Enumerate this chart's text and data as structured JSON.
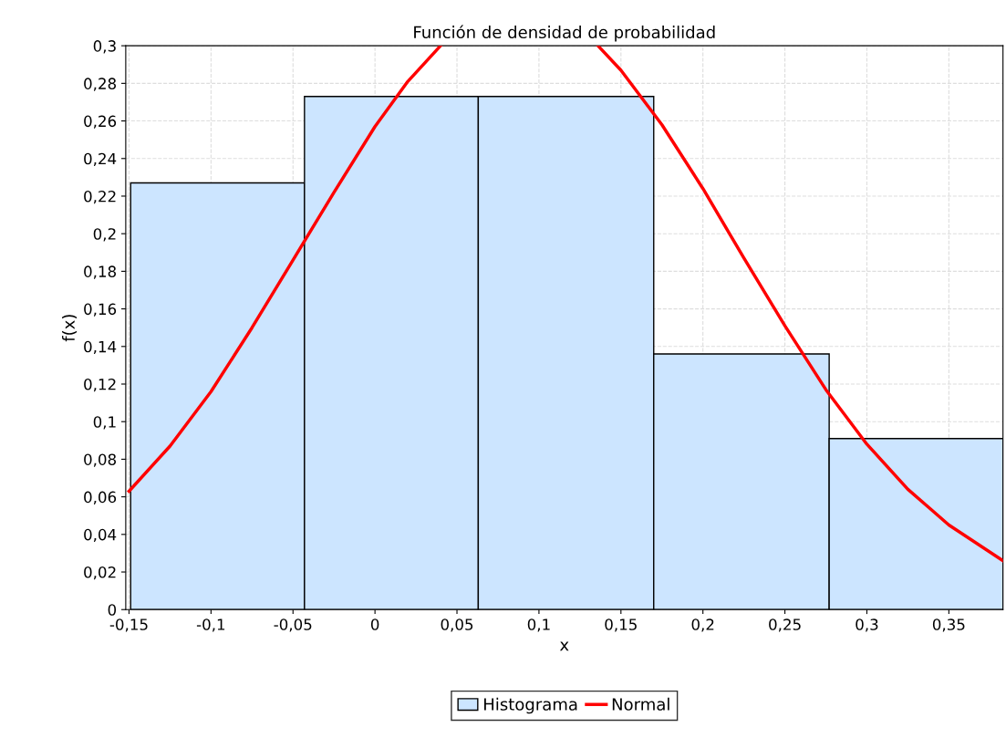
{
  "chart_data": {
    "type": "histogram",
    "title": "Función de densidad de probabilidad",
    "xlabel": "x",
    "ylabel": "f(x)",
    "series": [
      {
        "name": "Histograma",
        "color": "#cce5ff",
        "bins": [
          -0.149,
          -0.043,
          0.063,
          0.17,
          0.277,
          0.383
        ],
        "values": [
          0.227,
          0.273,
          0.273,
          0.136,
          0.091
        ]
      },
      {
        "type": "line",
        "name": "Normal",
        "color": "#ff0000",
        "x": [
          -0.15,
          -0.125,
          -0.1,
          -0.075,
          -0.05,
          -0.025,
          0,
          0.02,
          0.04,
          0.088,
          0.136,
          0.15,
          0.175,
          0.2,
          0.225,
          0.25,
          0.275,
          0.3,
          0.325,
          0.35,
          0.383
        ],
        "values": [
          0.063,
          0.087,
          0.116,
          0.15,
          0.186,
          0.222,
          0.257,
          0.281,
          0.3,
          null,
          0.3,
          0.287,
          0.258,
          0.224,
          0.187,
          0.151,
          0.117,
          0.088,
          0.064,
          0.045,
          0.026
        ]
      }
    ],
    "xlim": [
      -0.152,
      0.383
    ],
    "xticks": [
      {
        "value": -0.15,
        "label": "-0,15"
      },
      {
        "value": -0.1,
        "label": "-0,1"
      },
      {
        "value": -0.05,
        "label": "-0,05"
      },
      0,
      {
        "value": 0.05,
        "label": "0,05"
      },
      {
        "value": 0.1,
        "label": "0,1"
      },
      {
        "value": 0.15,
        "label": "0,15"
      },
      {
        "value": 0.2,
        "label": "0,2"
      },
      {
        "value": 0.25,
        "label": "0,25"
      },
      {
        "value": 0.3,
        "label": "0,3"
      },
      {
        "value": 0.35,
        "label": "0,35"
      }
    ],
    "ylim": [
      0,
      0.3
    ],
    "yticks": [
      0,
      {
        "value": 0.02,
        "label": "0,02"
      },
      {
        "value": 0.04,
        "label": "0,04"
      },
      {
        "value": 0.06,
        "label": "0,06"
      },
      {
        "value": 0.08,
        "label": "0,08"
      },
      {
        "value": 0.1,
        "label": "0,1"
      },
      {
        "value": 0.12,
        "label": "0,12"
      },
      {
        "value": 0.14,
        "label": "0,14"
      },
      {
        "value": 0.16,
        "label": "0,16"
      },
      {
        "value": 0.18,
        "label": "0,18"
      },
      {
        "value": 0.2,
        "label": "0,2"
      },
      {
        "value": 0.22,
        "label": "0,22"
      },
      {
        "value": 0.24,
        "label": "0,24"
      },
      {
        "value": 0.26,
        "label": "0,26"
      },
      {
        "value": 0.28,
        "label": "0,28"
      },
      {
        "value": 0.3,
        "label": "0,3"
      }
    ],
    "grid": true,
    "legend": "bottom",
    "line_style": "solid",
    "marker": "none"
  }
}
